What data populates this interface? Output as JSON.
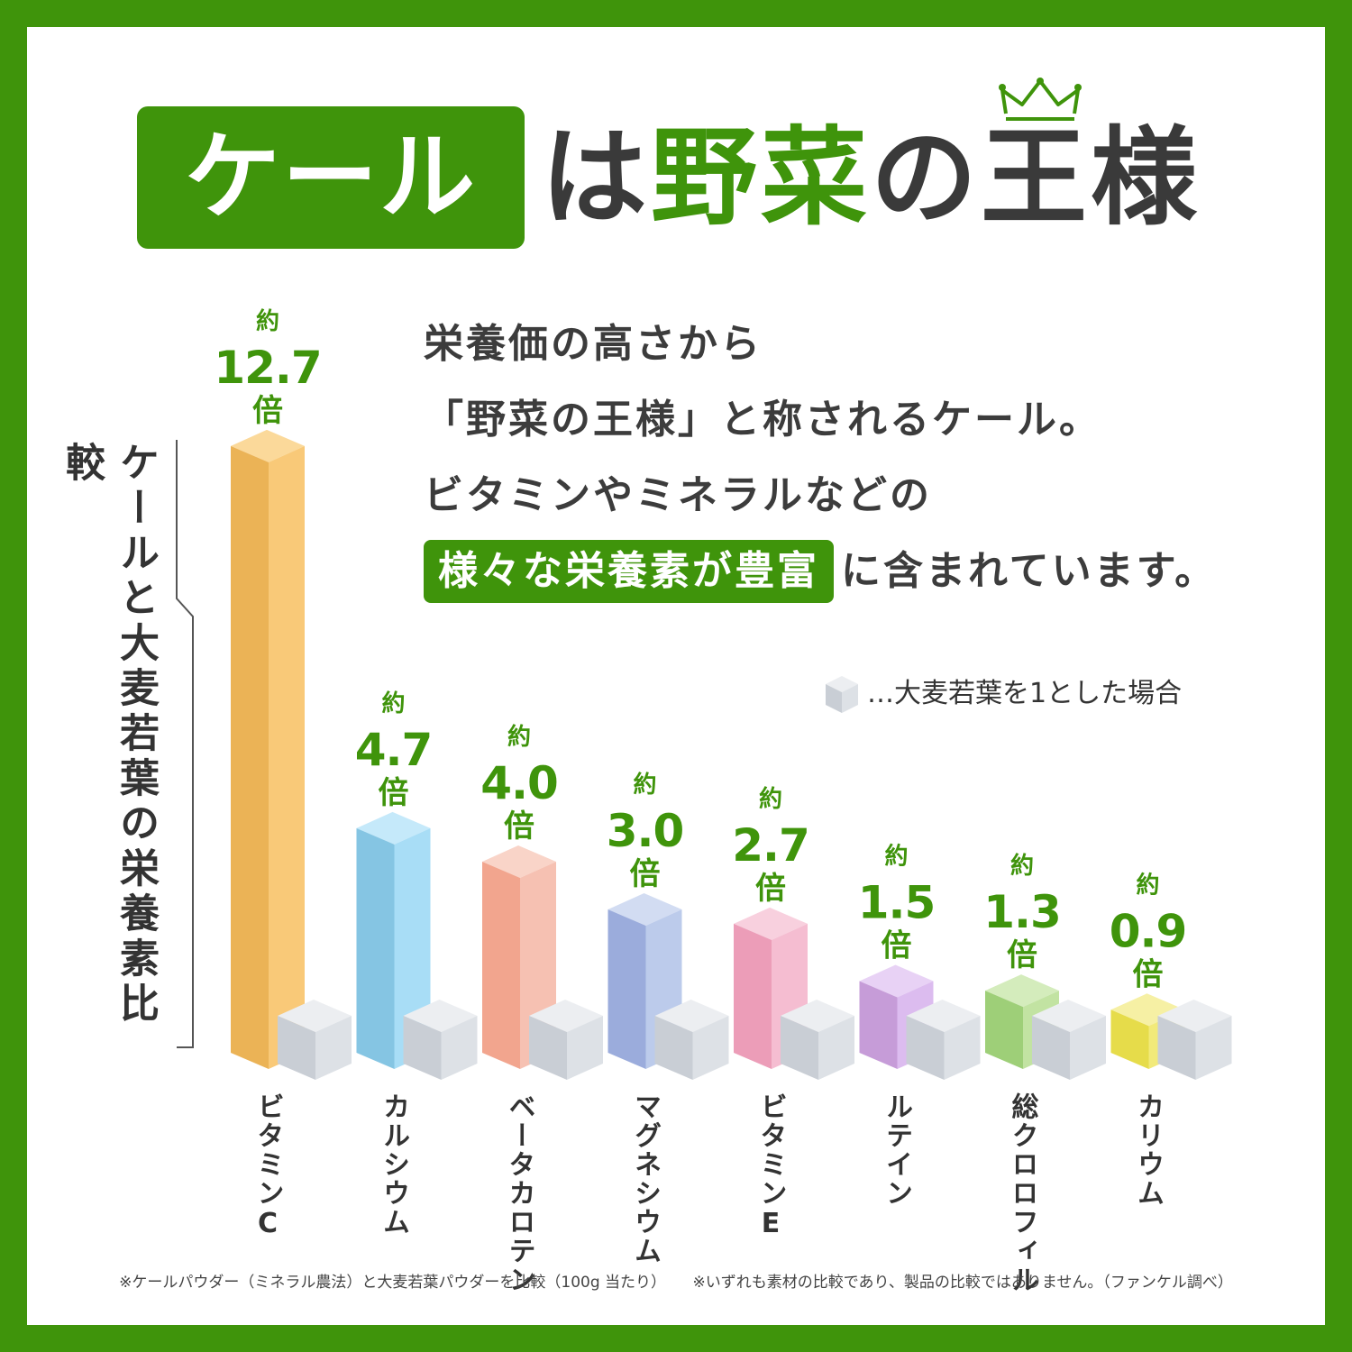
{
  "title": {
    "badge": "ケール",
    "particle": "は",
    "highlight": "野菜",
    "rest": "の王様"
  },
  "description": {
    "line1": "栄養価の高さから",
    "line2": "「野菜の王様」と称されるケール。",
    "line3": "ビタミンやミネラルなどの",
    "line4_highlight": "様々な栄養素が豊富",
    "line4_rest": "に含まれています。"
  },
  "side_label": "ケールと大麦若葉の栄養素比較",
  "legend": {
    "text": "…大麦若葉を1とした場合",
    "icon": "gray-cube-icon"
  },
  "footer": {
    "note1": "※ケールパウダー（ミネラル農法）と大麦若葉パウダーを比較（100g 当たり）",
    "note2": "※いずれも素材の比較であり、製品の比較ではありません。（ファンケル調べ）"
  },
  "colors": {
    "brand_green": "#3f940b",
    "text_dark": "#3a3a3a",
    "reference_cube": "#dde1e6"
  },
  "chart_data": {
    "type": "bar",
    "title": "",
    "xlabel": "",
    "ylabel": "ケールと大麦若葉の栄養素比較",
    "ylim": [
      0,
      13
    ],
    "reference_value": 1,
    "categories": [
      "ビタミンC",
      "カルシウム",
      "ベータカロテン",
      "マグネシウム",
      "ビタミンE",
      "ルテイン",
      "総クロロフィル",
      "カリウム"
    ],
    "values": [
      12.7,
      4.7,
      4.0,
      3.0,
      2.7,
      1.5,
      1.3,
      0.9
    ],
    "value_labels": [
      {
        "prefix": "約",
        "value": "12.7",
        "suffix": "倍"
      },
      {
        "prefix": "約",
        "value": "4.7",
        "suffix": "倍"
      },
      {
        "prefix": "約",
        "value": "4.0",
        "suffix": "倍"
      },
      {
        "prefix": "約",
        "value": "3.0",
        "suffix": "倍"
      },
      {
        "prefix": "約",
        "value": "2.7",
        "suffix": "倍"
      },
      {
        "prefix": "約",
        "value": "1.5",
        "suffix": "倍"
      },
      {
        "prefix": "約",
        "value": "1.3",
        "suffix": "倍"
      },
      {
        "prefix": "約",
        "value": "0.9",
        "suffix": "倍"
      }
    ],
    "bar_colors": [
      {
        "front": "#ebb356",
        "side": "#f9c978",
        "top": "#fbd99a"
      },
      {
        "front": "#85c5e3",
        "side": "#a8ddf6",
        "top": "#c5e9fa"
      },
      {
        "front": "#f2a58e",
        "side": "#f6c1b2",
        "top": "#f9d4c8"
      },
      {
        "front": "#9bacdc",
        "side": "#bccbeb",
        "top": "#d2dcf2"
      },
      {
        "front": "#ec9db8",
        "side": "#f5bdd1",
        "top": "#f8d0de"
      },
      {
        "front": "#c69cd8",
        "side": "#dcbcef",
        "top": "#e8d2f5"
      },
      {
        "front": "#9ecf78",
        "side": "#c2e3a2",
        "top": "#d4ecbc"
      },
      {
        "front": "#e6dc4a",
        "side": "#f2ea7a",
        "top": "#f6f0a4"
      }
    ]
  }
}
